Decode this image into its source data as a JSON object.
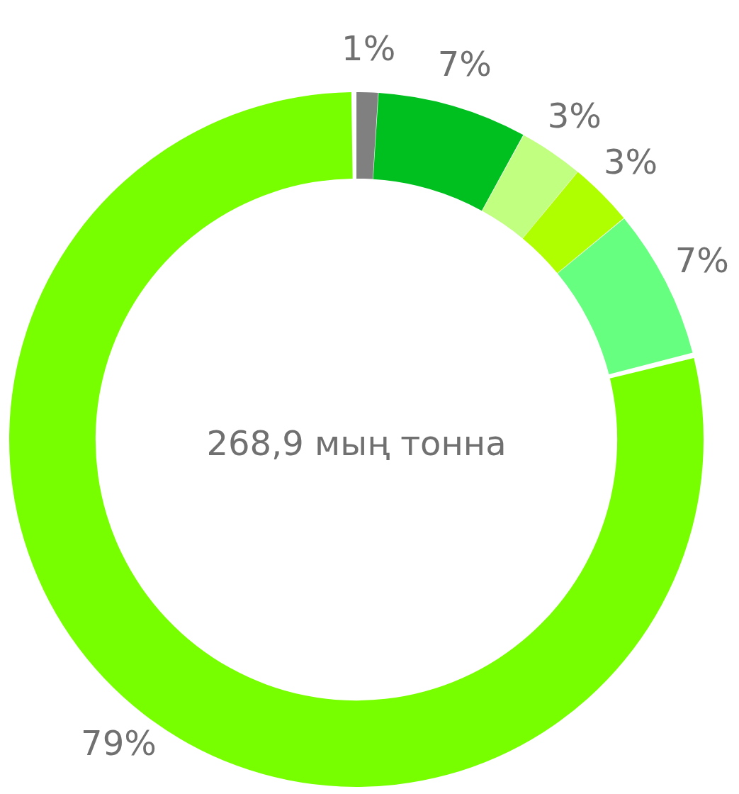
{
  "chart_data": {
    "type": "donut",
    "categories": [
      null,
      null,
      null,
      null,
      null,
      null
    ],
    "values": [
      1,
      7,
      3,
      3,
      7,
      79
    ],
    "colors": [
      "#808080",
      "#00c020",
      "#c0ff80",
      "#b0ff00",
      "#66ff80",
      "#77ff00"
    ],
    "value_labels": [
      "1%",
      "7%",
      "3%",
      "3%",
      "7%",
      "79%"
    ],
    "annotations": [
      "268,9 мың тонна"
    ],
    "legend": false
  }
}
